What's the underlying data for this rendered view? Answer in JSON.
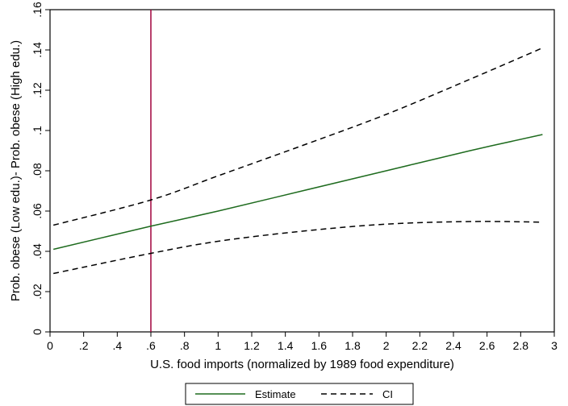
{
  "chart_data": {
    "type": "line",
    "title": "",
    "xlabel": "U.S. food imports (normalized by 1989 food expenditure)",
    "ylabel": "Prob. obese (Low edu.)- Prob. obese (High edu.)",
    "xlim": [
      0,
      3
    ],
    "ylim": [
      0,
      0.16
    ],
    "xticks": [
      0,
      0.2,
      0.4,
      0.6,
      0.8,
      1,
      1.2,
      1.4,
      1.6,
      1.8,
      2,
      2.2,
      2.4,
      2.6,
      2.8,
      3
    ],
    "xtick_labels": [
      "0",
      ".2",
      ".4",
      ".6",
      ".8",
      "1",
      "1.2",
      "1.4",
      "1.6",
      "1.8",
      "2",
      "2.2",
      "2.4",
      "2.6",
      "2.8",
      "3"
    ],
    "yticks": [
      0,
      0.02,
      0.04,
      0.06,
      0.08,
      0.1,
      0.12,
      0.14,
      0.16
    ],
    "ytick_labels": [
      "0",
      ".02",
      ".04",
      ".06",
      ".08",
      ".1",
      ".12",
      ".14",
      ".16"
    ],
    "grid": false,
    "legend_position": "bottom",
    "vline": {
      "x": 0.6,
      "color": "#a0003c"
    },
    "series": [
      {
        "name": "Estimate",
        "color": "#1e6b1e",
        "dash": "solid",
        "x": [
          0.02,
          0.6,
          1.0,
          1.5,
          2.0,
          2.5,
          2.93
        ],
        "y": [
          0.041,
          0.0525,
          0.06,
          0.07,
          0.08,
          0.09,
          0.098
        ]
      },
      {
        "name": "CI",
        "color": "#000000",
        "dash": "dashed",
        "x": [
          0.02,
          0.6,
          1.0,
          1.5,
          2.0,
          2.5,
          2.93
        ],
        "y": [
          0.053,
          0.0655,
          0.0775,
          0.0925,
          0.108,
          0.1255,
          0.141
        ]
      },
      {
        "name": "",
        "color": "#000000",
        "dash": "dashed",
        "x": [
          0.02,
          0.6,
          1.0,
          1.5,
          2.0,
          2.5,
          2.93
        ],
        "y": [
          0.029,
          0.039,
          0.045,
          0.05,
          0.0535,
          0.0548,
          0.0545
        ]
      }
    ]
  }
}
